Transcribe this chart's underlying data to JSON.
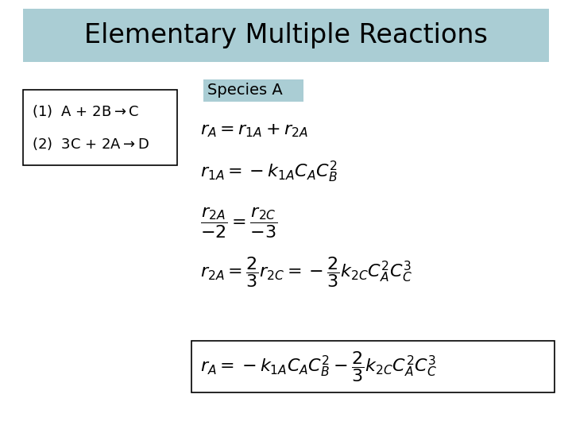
{
  "title": "Elementary Multiple Reactions",
  "title_bg_color": "#aacdd4",
  "title_fontsize": 24,
  "background_color": "#ffffff",
  "species_label": "Species A",
  "species_bg_color": "#aacdd4",
  "eq1": "$r_A = r_{1A} + r_{2A}$",
  "eq2": "$r_{1A} = -k_{1A}C_AC_B^2$",
  "eq3": "$\\dfrac{r_{2A}}{-2} = \\dfrac{r_{2C}}{-3}$",
  "eq4": "$r_{2A} = \\dfrac{2}{3}r_{2C} = -\\dfrac{2}{3}k_{2C}C_A^2C_C^3$",
  "eq5": "$r_A = -k_{1A}C_AC_B^2 - \\dfrac{2}{3}k_{2C}C_A^2C_C^3$"
}
